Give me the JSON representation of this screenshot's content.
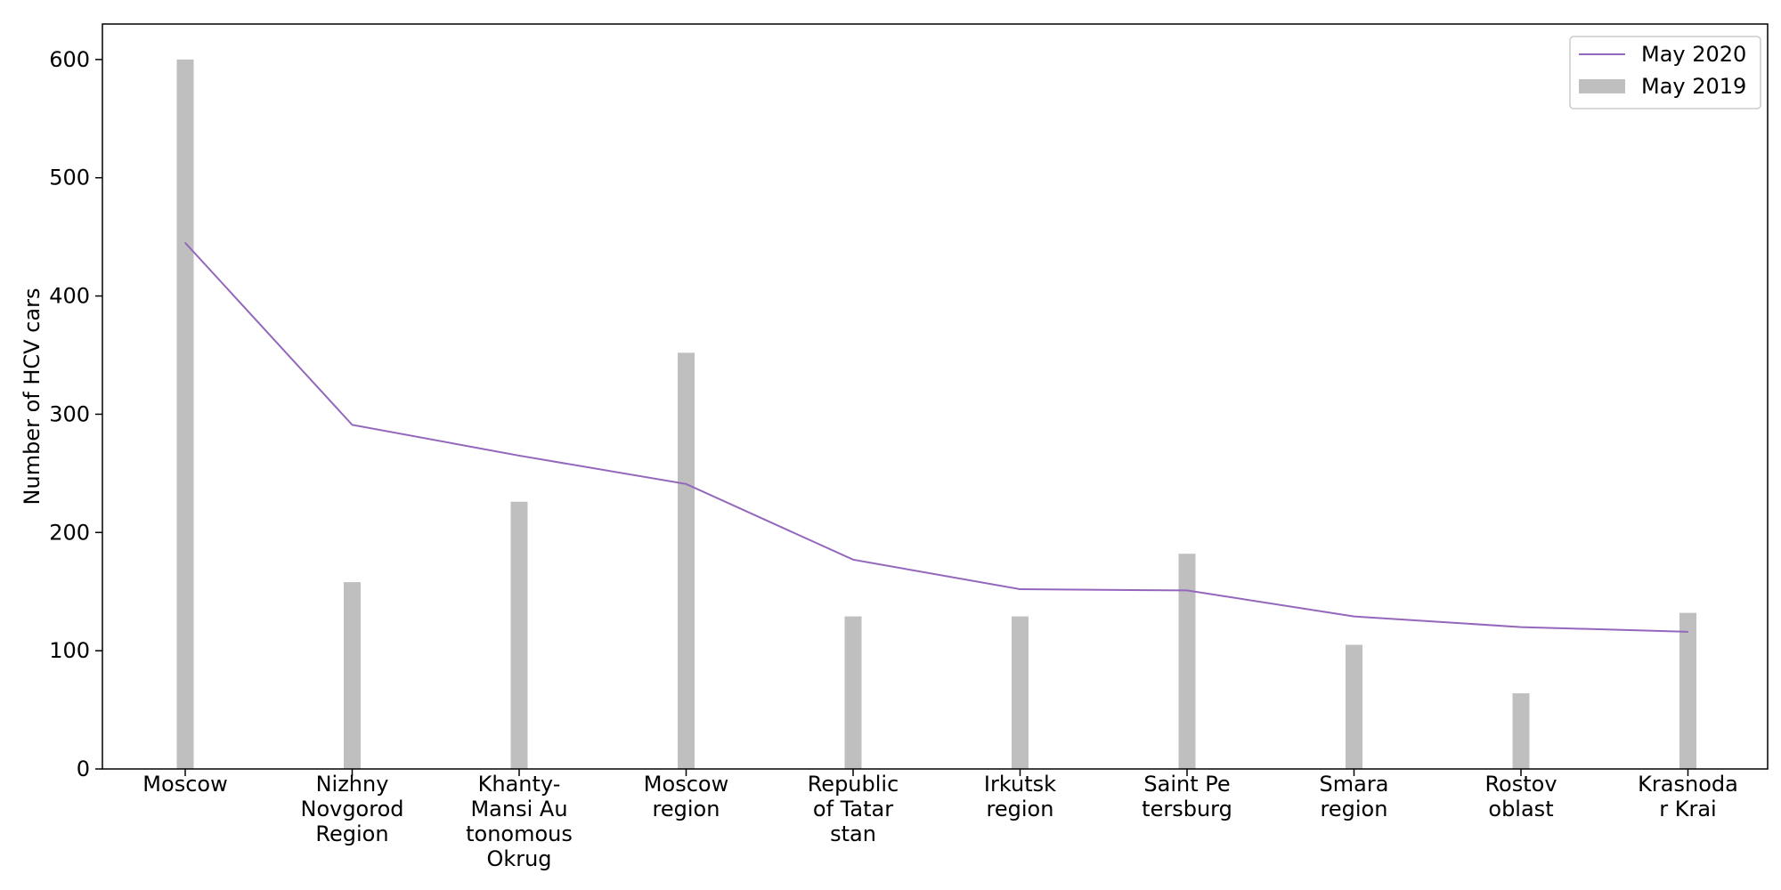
{
  "chart_data": {
    "type": "bar",
    "title": "",
    "xlabel": "",
    "ylabel": "Number of HCV cars",
    "ylim": [
      0,
      630
    ],
    "yticks": [
      0,
      100,
      200,
      300,
      400,
      500,
      600
    ],
    "grid": false,
    "legend_position": "top-right",
    "categories": [
      [
        "Moscow"
      ],
      [
        "Nizhny",
        "Novgorod",
        "Region"
      ],
      [
        "Khanty-",
        "Mansi Au",
        "tonomous",
        "Okrug"
      ],
      [
        "Moscow",
        "region"
      ],
      [
        "Republic",
        "of Tatar",
        "stan"
      ],
      [
        "Irkutsk",
        "region"
      ],
      [
        "Saint Pe",
        "tersburg"
      ],
      [
        "Smara",
        "region"
      ],
      [
        "Rostov",
        "oblast"
      ],
      [
        "Krasnoda",
        "r Krai"
      ]
    ],
    "series": [
      {
        "name": "May 2020",
        "kind": "line",
        "color": "#9467bd",
        "values": [
          445,
          291,
          265,
          241,
          177,
          152,
          151,
          129,
          120,
          116
        ]
      },
      {
        "name": "May 2019",
        "kind": "bar",
        "color": "#bfbfbf",
        "values": [
          600,
          158,
          226,
          352,
          129,
          129,
          182,
          105,
          64,
          132
        ]
      }
    ]
  }
}
